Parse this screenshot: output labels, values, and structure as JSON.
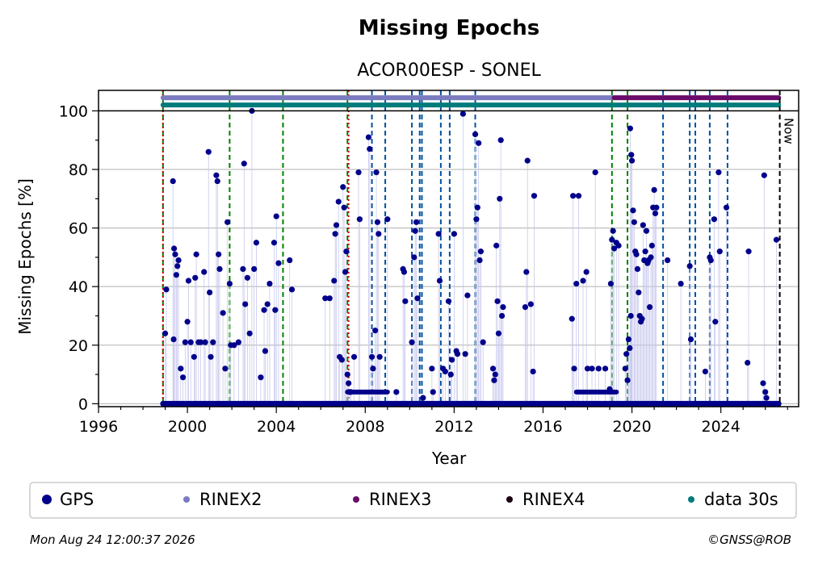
{
  "chart_data": {
    "type": "scatter",
    "title": "Missing Epochs",
    "subtitle": "ACOR00ESP - SONEL",
    "xlabel": "Year",
    "ylabel": "Missing Epochs [%]",
    "xlim": [
      1996,
      2027.5
    ],
    "ylim": [
      -1,
      107
    ],
    "x_ticks": [
      1996,
      2000,
      2004,
      2008,
      2012,
      2016,
      2020,
      2024
    ],
    "y_ticks": [
      0,
      20,
      40,
      60,
      80,
      100
    ],
    "grid": "horizontal",
    "now_label": "Now",
    "now_year": 2026.65,
    "legend_position": "bottom",
    "colors": {
      "gps": "#00008b",
      "rinex2": "#7b7bc0",
      "rinex3": "#6a0a6a",
      "rinex4": "#1a0010",
      "data30s": "#007b7b",
      "event_green": "#008000",
      "event_blue": "#0050a0",
      "event_red": "#cc0000",
      "grid": "#b0b0b0"
    },
    "legend": [
      {
        "key": "gps",
        "label": "GPS"
      },
      {
        "key": "rinex2",
        "label": "RINEX2"
      },
      {
        "key": "rinex3",
        "label": "RINEX3"
      },
      {
        "key": "rinex4",
        "label": "RINEX4"
      },
      {
        "key": "data30s",
        "label": "data 30s"
      }
    ],
    "availability_bars": [
      {
        "key": "rinex2",
        "y": 104.5,
        "start": 1998.9,
        "end": 2019.2
      },
      {
        "key": "rinex3",
        "y": 104.5,
        "start": 2019.2,
        "end": 2026.6
      },
      {
        "key": "data30s",
        "y": 102,
        "start": 1998.9,
        "end": 2026.6
      }
    ],
    "event_lines": {
      "green": [
        1998.9,
        2001.9,
        2004.3,
        2007.2,
        2019.1,
        2019.8
      ],
      "red": [
        1998.9,
        2007.25
      ],
      "blue": [
        2008.3,
        2008.9,
        2010.1,
        2010.45,
        2010.55,
        2011.4,
        2011.8,
        2012.95,
        2021.4,
        2022.6,
        2022.85,
        2023.5,
        2024.3
      ]
    },
    "gps_points": [
      [
        1999.0,
        24
      ],
      [
        1999.05,
        39
      ],
      [
        1999.35,
        76
      ],
      [
        1999.4,
        53
      ],
      [
        1999.45,
        51
      ],
      [
        1999.5,
        44
      ],
      [
        1999.55,
        47
      ],
      [
        1999.6,
        49
      ],
      [
        1999.38,
        22
      ],
      [
        1999.7,
        12
      ],
      [
        1999.8,
        9
      ],
      [
        1999.9,
        21
      ],
      [
        2000.0,
        28
      ],
      [
        2000.05,
        42
      ],
      [
        2000.15,
        21
      ],
      [
        2000.3,
        16
      ],
      [
        2000.35,
        43
      ],
      [
        2000.4,
        51
      ],
      [
        2000.5,
        21
      ],
      [
        2000.6,
        21
      ],
      [
        2000.75,
        45
      ],
      [
        2000.8,
        21
      ],
      [
        2000.95,
        86
      ],
      [
        2001.0,
        38
      ],
      [
        2001.05,
        16
      ],
      [
        2001.15,
        21
      ],
      [
        2001.3,
        78
      ],
      [
        2001.35,
        76
      ],
      [
        2001.4,
        51
      ],
      [
        2001.45,
        46
      ],
      [
        2001.6,
        31
      ],
      [
        2001.7,
        12
      ],
      [
        2001.8,
        62
      ],
      [
        2001.9,
        41
      ],
      [
        2001.95,
        20
      ],
      [
        2002.1,
        20
      ],
      [
        2002.3,
        21
      ],
      [
        2002.5,
        46
      ],
      [
        2002.55,
        82
      ],
      [
        2002.6,
        34
      ],
      [
        2002.7,
        43
      ],
      [
        2002.8,
        24
      ],
      [
        2002.9,
        100
      ],
      [
        2003.0,
        46
      ],
      [
        2003.1,
        55
      ],
      [
        2003.3,
        9
      ],
      [
        2003.45,
        32
      ],
      [
        2003.5,
        18
      ],
      [
        2003.6,
        34
      ],
      [
        2003.7,
        41
      ],
      [
        2003.9,
        55
      ],
      [
        2003.95,
        32
      ],
      [
        2004.0,
        64
      ],
      [
        2004.1,
        48
      ],
      [
        2004.6,
        49
      ],
      [
        2004.7,
        39
      ],
      [
        2006.2,
        36
      ],
      [
        2006.4,
        36
      ],
      [
        2006.6,
        42
      ],
      [
        2006.65,
        58
      ],
      [
        2006.7,
        61
      ],
      [
        2006.8,
        69
      ],
      [
        2006.85,
        16
      ],
      [
        2006.95,
        15
      ],
      [
        2007.0,
        74
      ],
      [
        2007.05,
        67
      ],
      [
        2007.1,
        45
      ],
      [
        2007.15,
        52
      ],
      [
        2007.2,
        10
      ],
      [
        2007.25,
        7
      ],
      [
        2007.3,
        4
      ],
      [
        2007.35,
        4
      ],
      [
        2007.5,
        16
      ],
      [
        2007.7,
        79
      ],
      [
        2007.75,
        63
      ],
      [
        2008.15,
        91
      ],
      [
        2008.2,
        87
      ],
      [
        2008.3,
        16
      ],
      [
        2008.35,
        12
      ],
      [
        2008.45,
        25
      ],
      [
        2008.5,
        79
      ],
      [
        2008.55,
        62
      ],
      [
        2008.6,
        58
      ],
      [
        2008.65,
        16
      ],
      [
        2009.0,
        63
      ],
      [
        2009.4,
        4
      ],
      [
        2009.7,
        46
      ],
      [
        2009.75,
        45
      ],
      [
        2009.8,
        35
      ],
      [
        2010.1,
        21
      ],
      [
        2010.2,
        50
      ],
      [
        2010.25,
        59
      ],
      [
        2010.3,
        62
      ],
      [
        2010.35,
        36
      ],
      [
        2010.6,
        2
      ],
      [
        2011.0,
        12
      ],
      [
        2011.05,
        4
      ],
      [
        2011.3,
        58
      ],
      [
        2011.35,
        42
      ],
      [
        2011.5,
        12
      ],
      [
        2011.6,
        11
      ],
      [
        2011.75,
        35
      ],
      [
        2011.85,
        10
      ],
      [
        2011.9,
        15
      ],
      [
        2012.0,
        58
      ],
      [
        2012.1,
        18
      ],
      [
        2012.15,
        17
      ],
      [
        2012.4,
        99
      ],
      [
        2012.5,
        17
      ],
      [
        2012.6,
        37
      ],
      [
        2012.95,
        92
      ],
      [
        2013.0,
        63
      ],
      [
        2013.05,
        67
      ],
      [
        2013.1,
        89
      ],
      [
        2013.15,
        49
      ],
      [
        2013.2,
        52
      ],
      [
        2013.3,
        21
      ],
      [
        2013.75,
        12
      ],
      [
        2013.8,
        8
      ],
      [
        2013.85,
        10
      ],
      [
        2013.9,
        54
      ],
      [
        2013.95,
        35
      ],
      [
        2014.0,
        24
      ],
      [
        2014.05,
        70
      ],
      [
        2014.1,
        90
      ],
      [
        2014.15,
        30
      ],
      [
        2014.2,
        33
      ],
      [
        2015.2,
        33
      ],
      [
        2015.25,
        45
      ],
      [
        2015.3,
        83
      ],
      [
        2015.45,
        34
      ],
      [
        2015.55,
        11
      ],
      [
        2015.6,
        71
      ],
      [
        2017.3,
        29
      ],
      [
        2017.35,
        71
      ],
      [
        2017.4,
        12
      ],
      [
        2017.5,
        41
      ],
      [
        2017.6,
        71
      ],
      [
        2017.8,
        42
      ],
      [
        2017.95,
        45
      ],
      [
        2018.0,
        12
      ],
      [
        2018.2,
        12
      ],
      [
        2018.35,
        79
      ],
      [
        2018.5,
        12
      ],
      [
        2018.8,
        12
      ],
      [
        2019.0,
        5
      ],
      [
        2019.05,
        41
      ],
      [
        2019.1,
        56
      ],
      [
        2019.15,
        59
      ],
      [
        2019.2,
        53
      ],
      [
        2019.3,
        55
      ],
      [
        2019.4,
        54
      ],
      [
        2019.7,
        12
      ],
      [
        2019.75,
        17
      ],
      [
        2019.8,
        8
      ],
      [
        2019.85,
        22
      ],
      [
        2019.9,
        19
      ],
      [
        2019.95,
        30
      ],
      [
        2019.92,
        94
      ],
      [
        2019.97,
        85
      ],
      [
        2020.0,
        83
      ],
      [
        2020.05,
        66
      ],
      [
        2020.1,
        62
      ],
      [
        2020.15,
        52
      ],
      [
        2020.2,
        51
      ],
      [
        2020.25,
        46
      ],
      [
        2020.3,
        38
      ],
      [
        2020.35,
        30
      ],
      [
        2020.4,
        28
      ],
      [
        2020.45,
        29
      ],
      [
        2020.5,
        61
      ],
      [
        2020.55,
        49
      ],
      [
        2020.6,
        52
      ],
      [
        2020.65,
        59
      ],
      [
        2020.7,
        48
      ],
      [
        2020.75,
        49
      ],
      [
        2020.8,
        33
      ],
      [
        2020.85,
        50
      ],
      [
        2020.9,
        54
      ],
      [
        2020.95,
        67
      ],
      [
        2021.0,
        73
      ],
      [
        2021.05,
        65
      ],
      [
        2021.1,
        67
      ],
      [
        2021.6,
        49
      ],
      [
        2022.2,
        41
      ],
      [
        2022.6,
        47
      ],
      [
        2022.65,
        22
      ],
      [
        2023.3,
        11
      ],
      [
        2023.5,
        50
      ],
      [
        2023.55,
        49
      ],
      [
        2023.7,
        63
      ],
      [
        2023.75,
        28
      ],
      [
        2023.9,
        79
      ],
      [
        2023.95,
        52
      ],
      [
        2024.25,
        67
      ],
      [
        2025.2,
        14
      ],
      [
        2025.25,
        52
      ],
      [
        2025.9,
        7
      ],
      [
        2025.95,
        78
      ],
      [
        2026.0,
        4
      ],
      [
        2026.05,
        2
      ],
      [
        2026.5,
        56
      ]
    ],
    "gps_zero_segments": [
      [
        1998.9,
        2026.6
      ]
    ],
    "gps_low_band": [
      [
        2007.2,
        2009.0
      ],
      [
        2017.5,
        2019.3
      ]
    ],
    "footer_left": "Mon Aug 24 12:00:37 2026",
    "footer_right": "©GNSS@ROB"
  }
}
